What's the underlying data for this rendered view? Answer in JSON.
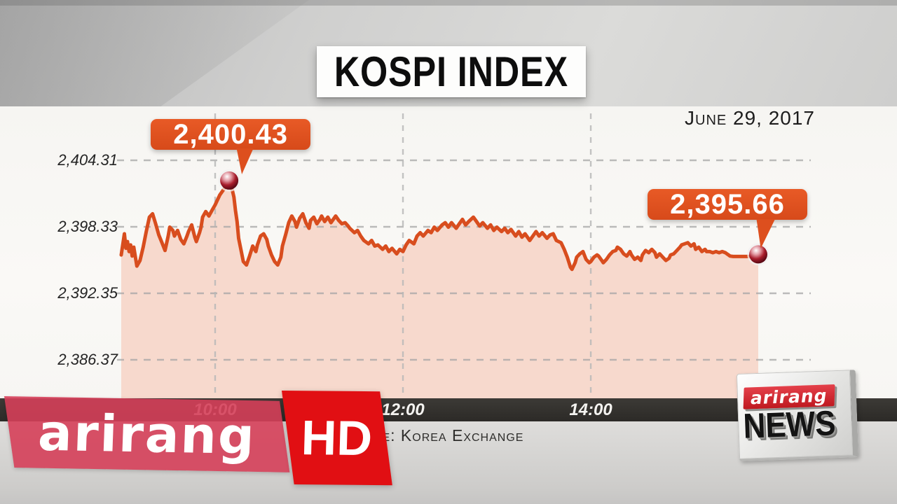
{
  "chart_data": {
    "type": "area",
    "title": "KOSPI INDEX",
    "date_label": "June 29, 2017",
    "source_label": "Source: Korea Exchange",
    "x_unit": "minutes since 09:00",
    "x_ticks": [
      {
        "minutes": 60,
        "label": "10:00"
      },
      {
        "minutes": 180,
        "label": "12:00"
      },
      {
        "minutes": 300,
        "label": "14:00"
      }
    ],
    "y_ticks": [
      {
        "value": 2404.31,
        "label": "2,404.31"
      },
      {
        "value": 2398.33,
        "label": "2,398.33"
      },
      {
        "value": 2392.35,
        "label": "2,392.35"
      },
      {
        "value": 2386.37,
        "label": "2,386.37"
      }
    ],
    "ylim": [
      2382.9,
      2408.4
    ],
    "grid": true,
    "legend": false,
    "annotations": [
      {
        "id": "peak",
        "label": "2,400.43",
        "anchor_minutes": 69,
        "anchor_value": 2402.3
      },
      {
        "id": "last",
        "label": "2,395.66",
        "anchor_minutes": 407,
        "anchor_value": 2395.66
      }
    ],
    "colors": {
      "line": "#d84d1e",
      "fill": "#f7d9cd",
      "callout": "#dd5220",
      "grid": "#a6a6a6",
      "marker_dark": "#4a0710"
    },
    "series": [
      {
        "name": "KOSPI",
        "points": [
          [
            0,
            2395.8
          ],
          [
            2,
            2397.7
          ],
          [
            3,
            2396.4
          ],
          [
            4,
            2397.0
          ],
          [
            5,
            2396.1
          ],
          [
            6,
            2396.7
          ],
          [
            7,
            2395.7
          ],
          [
            8,
            2396.5
          ],
          [
            10,
            2394.8
          ],
          [
            12,
            2395.3
          ],
          [
            14,
            2396.5
          ],
          [
            16,
            2397.9
          ],
          [
            18,
            2399.2
          ],
          [
            20,
            2399.5
          ],
          [
            22,
            2398.6
          ],
          [
            24,
            2397.6
          ],
          [
            26,
            2396.9
          ],
          [
            28,
            2396.2
          ],
          [
            30,
            2397.5
          ],
          [
            31,
            2398.3
          ],
          [
            33,
            2398.0
          ],
          [
            34,
            2397.5
          ],
          [
            36,
            2398.0
          ],
          [
            38,
            2397.2
          ],
          [
            40,
            2396.8
          ],
          [
            42,
            2397.5
          ],
          [
            43,
            2397.9
          ],
          [
            45,
            2398.5
          ],
          [
            47,
            2397.4
          ],
          [
            48,
            2397.0
          ],
          [
            50,
            2397.8
          ],
          [
            51,
            2398.3
          ],
          [
            52,
            2399.2
          ],
          [
            54,
            2399.7
          ],
          [
            56,
            2399.3
          ],
          [
            58,
            2399.8
          ],
          [
            60,
            2400.3
          ],
          [
            61,
            2400.6
          ],
          [
            63,
            2401.2
          ],
          [
            65,
            2401.6
          ],
          [
            67,
            2402.0
          ],
          [
            69,
            2402.3
          ],
          [
            70,
            2402.2
          ],
          [
            71,
            2401.6
          ],
          [
            72,
            2401.0
          ],
          [
            73,
            2399.8
          ],
          [
            74,
            2398.8
          ],
          [
            75,
            2397.3
          ],
          [
            77,
            2395.9
          ],
          [
            78,
            2395.2
          ],
          [
            80,
            2394.9
          ],
          [
            82,
            2395.7
          ],
          [
            84,
            2396.6
          ],
          [
            86,
            2396.1
          ],
          [
            87,
            2396.7
          ],
          [
            89,
            2397.5
          ],
          [
            91,
            2397.7
          ],
          [
            93,
            2397.2
          ],
          [
            94,
            2396.6
          ],
          [
            96,
            2395.8
          ],
          [
            98,
            2395.2
          ],
          [
            100,
            2394.9
          ],
          [
            102,
            2395.6
          ],
          [
            103,
            2396.6
          ],
          [
            105,
            2397.6
          ],
          [
            107,
            2398.7
          ],
          [
            109,
            2399.3
          ],
          [
            111,
            2398.8
          ],
          [
            112,
            2398.3
          ],
          [
            114,
            2399.1
          ],
          [
            116,
            2399.5
          ],
          [
            118,
            2398.7
          ],
          [
            120,
            2398.2
          ],
          [
            121,
            2398.9
          ],
          [
            123,
            2399.2
          ],
          [
            125,
            2398.6
          ],
          [
            127,
            2399.0
          ],
          [
            128,
            2399.3
          ],
          [
            130,
            2398.8
          ],
          [
            132,
            2399.2
          ],
          [
            134,
            2398.7
          ],
          [
            136,
            2399.1
          ],
          [
            137,
            2399.3
          ],
          [
            139,
            2398.9
          ],
          [
            141,
            2398.6
          ],
          [
            143,
            2398.7
          ],
          [
            145,
            2398.4
          ],
          [
            146,
            2398.2
          ],
          [
            149,
            2397.8
          ],
          [
            151,
            2398.0
          ],
          [
            153,
            2397.5
          ],
          [
            155,
            2397.1
          ],
          [
            158,
            2396.8
          ],
          [
            160,
            2397.1
          ],
          [
            162,
            2396.6
          ],
          [
            164,
            2396.7
          ],
          [
            167,
            2396.3
          ],
          [
            169,
            2396.6
          ],
          [
            171,
            2396.1
          ],
          [
            173,
            2396.4
          ],
          [
            176,
            2395.9
          ],
          [
            178,
            2396.3
          ],
          [
            180,
            2396.1
          ],
          [
            182,
            2396.7
          ],
          [
            184,
            2397.1
          ],
          [
            187,
            2396.8
          ],
          [
            189,
            2397.5
          ],
          [
            191,
            2397.8
          ],
          [
            193,
            2397.5
          ],
          [
            196,
            2398.0
          ],
          [
            198,
            2397.8
          ],
          [
            200,
            2398.3
          ],
          [
            202,
            2398.0
          ],
          [
            205,
            2398.5
          ],
          [
            207,
            2398.7
          ],
          [
            209,
            2398.3
          ],
          [
            211,
            2398.7
          ],
          [
            214,
            2398.2
          ],
          [
            216,
            2398.6
          ],
          [
            218,
            2399.0
          ],
          [
            220,
            2398.5
          ],
          [
            222,
            2398.8
          ],
          [
            225,
            2399.2
          ],
          [
            227,
            2398.8
          ],
          [
            229,
            2398.4
          ],
          [
            231,
            2398.7
          ],
          [
            234,
            2398.2
          ],
          [
            236,
            2398.5
          ],
          [
            238,
            2398.0
          ],
          [
            240,
            2398.3
          ],
          [
            243,
            2397.9
          ],
          [
            245,
            2398.2
          ],
          [
            247,
            2397.8
          ],
          [
            249,
            2398.1
          ],
          [
            252,
            2397.5
          ],
          [
            254,
            2397.9
          ],
          [
            256,
            2397.4
          ],
          [
            258,
            2397.7
          ],
          [
            261,
            2397.1
          ],
          [
            263,
            2397.5
          ],
          [
            265,
            2397.9
          ],
          [
            267,
            2397.5
          ],
          [
            269,
            2397.8
          ],
          [
            272,
            2397.3
          ],
          [
            274,
            2397.6
          ],
          [
            276,
            2397.7
          ],
          [
            278,
            2397.1
          ],
          [
            281,
            2396.9
          ],
          [
            283,
            2396.3
          ],
          [
            285,
            2395.6
          ],
          [
            287,
            2394.7
          ],
          [
            288,
            2394.5
          ],
          [
            290,
            2395.1
          ],
          [
            291,
            2395.6
          ],
          [
            293,
            2395.9
          ],
          [
            295,
            2396.1
          ],
          [
            297,
            2395.4
          ],
          [
            299,
            2395.1
          ],
          [
            300,
            2395.2
          ],
          [
            302,
            2395.6
          ],
          [
            304,
            2395.8
          ],
          [
            305,
            2395.7
          ],
          [
            307,
            2395.3
          ],
          [
            308,
            2395.1
          ],
          [
            310,
            2395.4
          ],
          [
            312,
            2395.8
          ],
          [
            314,
            2396.1
          ],
          [
            316,
            2396.2
          ],
          [
            317,
            2396.5
          ],
          [
            319,
            2396.3
          ],
          [
            321,
            2395.9
          ],
          [
            323,
            2395.7
          ],
          [
            325,
            2396.1
          ],
          [
            326,
            2395.8
          ],
          [
            328,
            2395.4
          ],
          [
            330,
            2395.6
          ],
          [
            332,
            2395.3
          ],
          [
            333,
            2395.8
          ],
          [
            335,
            2396.2
          ],
          [
            337,
            2396.0
          ],
          [
            339,
            2396.3
          ],
          [
            341,
            2396.0
          ],
          [
            342,
            2395.6
          ],
          [
            344,
            2395.9
          ],
          [
            346,
            2395.6
          ],
          [
            348,
            2395.3
          ],
          [
            350,
            2395.5
          ],
          [
            351,
            2395.8
          ],
          [
            353,
            2395.9
          ],
          [
            355,
            2396.2
          ],
          [
            357,
            2396.5
          ],
          [
            358,
            2396.7
          ],
          [
            360,
            2396.8
          ],
          [
            362,
            2396.9
          ],
          [
            364,
            2396.6
          ],
          [
            366,
            2396.8
          ],
          [
            367,
            2396.3
          ],
          [
            369,
            2396.5
          ],
          [
            371,
            2396.1
          ],
          [
            373,
            2396.3
          ],
          [
            374,
            2396.1
          ],
          [
            376,
            2396.1
          ],
          [
            378,
            2396.0
          ],
          [
            380,
            2396.1
          ],
          [
            382,
            2396.0
          ],
          [
            384,
            2396.1
          ],
          [
            386,
            2396.0
          ],
          [
            387,
            2395.9
          ],
          [
            388,
            2395.8
          ],
          [
            389,
            2395.7
          ],
          [
            391,
            2395.66
          ],
          [
            395,
            2395.66
          ],
          [
            399,
            2395.66
          ],
          [
            403,
            2395.66
          ],
          [
            407,
            2395.66
          ]
        ]
      }
    ]
  },
  "logos": {
    "channel_wordmark": "arirang",
    "hd_badge": "HD",
    "news_wordmark": "arirang",
    "news_label": "NEWS"
  }
}
